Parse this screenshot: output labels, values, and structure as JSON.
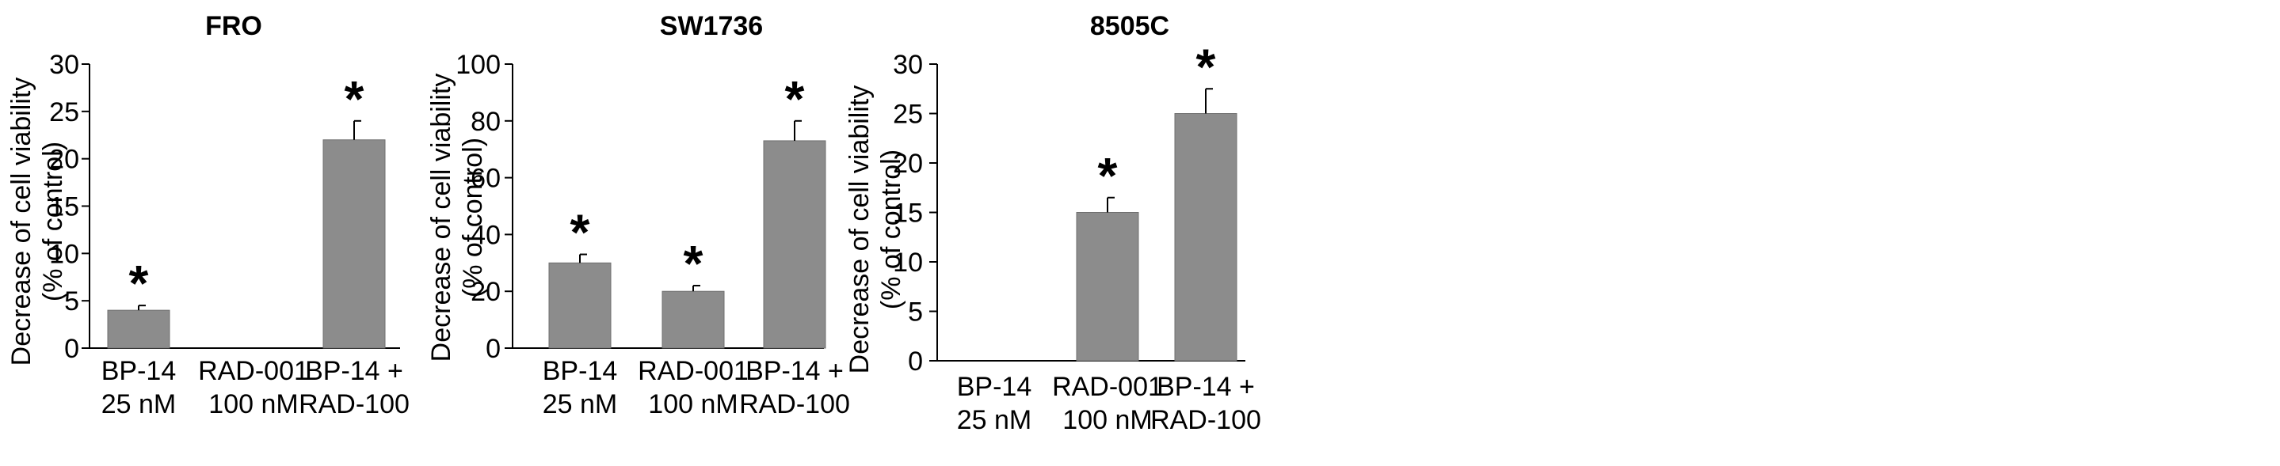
{
  "chart_data": [
    {
      "type": "bar",
      "title": "FRO",
      "ylabel": [
        "Decrease of cell viability",
        "(% of control)"
      ],
      "xlabel": "",
      "ylim": [
        0,
        30
      ],
      "yticks": [
        0,
        5,
        10,
        15,
        20,
        25,
        30
      ],
      "categories": [
        [
          "BP-14",
          "25 nM"
        ],
        [
          "RAD-001",
          "100 nM"
        ],
        [
          "BP-14 +",
          "RAD-100"
        ]
      ],
      "values": [
        4,
        0,
        22
      ],
      "errors": [
        0.5,
        0,
        2
      ],
      "significance": [
        "*",
        "",
        "*"
      ],
      "bar_color": "#8c8c8c",
      "grid": false,
      "legend": "none"
    },
    {
      "type": "bar",
      "title": "SW1736",
      "ylabel": [
        "Decrease of cell viability",
        "(% of control)"
      ],
      "xlabel": "",
      "ylim": [
        0,
        100
      ],
      "yticks": [
        0,
        20,
        40,
        60,
        80,
        100
      ],
      "categories": [
        [
          "BP-14",
          "25 nM"
        ],
        [
          "RAD-001",
          "100 nM"
        ],
        [
          "BP-14 +",
          "RAD-100"
        ]
      ],
      "values": [
        30,
        20,
        73
      ],
      "errors": [
        3,
        2,
        7
      ],
      "significance": [
        "*",
        "*",
        "*"
      ],
      "bar_color": "#8c8c8c",
      "grid": false,
      "legend": "none"
    },
    {
      "type": "bar",
      "title": "8505C",
      "ylabel": [
        "Decrease of cell viability",
        "(% of control)"
      ],
      "xlabel": "",
      "ylim": [
        0,
        30
      ],
      "yticks": [
        0,
        5,
        10,
        15,
        20,
        25,
        30
      ],
      "categories": [
        [
          "BP-14",
          "25 nM"
        ],
        [
          "RAD-001",
          "100 nM"
        ],
        [
          "BP-14 +",
          "RAD-100"
        ]
      ],
      "values": [
        0,
        15,
        25
      ],
      "errors": [
        0,
        1.5,
        2.5
      ],
      "significance": [
        "",
        "*",
        "*"
      ],
      "bar_color": "#8c8c8c",
      "grid": false,
      "legend": "none"
    }
  ]
}
